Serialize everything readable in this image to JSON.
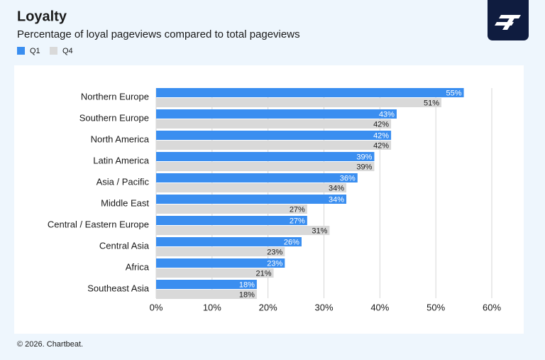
{
  "chart_data": {
    "type": "bar",
    "orientation": "horizontal",
    "title": "Loyalty",
    "subtitle": "Percentage of loyal pageviews compared to total pageviews",
    "categories": [
      "Northern Europe",
      "Southern Europe",
      "North America",
      "Latin America",
      "Asia / Pacific",
      "Middle East",
      "Central / Eastern Europe",
      "Central Asia",
      "Africa",
      "Southeast Asia"
    ],
    "series": [
      {
        "name": "Q1",
        "color": "#3a8ef0",
        "values": [
          55,
          43,
          42,
          39,
          36,
          34,
          27,
          26,
          23,
          18
        ],
        "value_labels": [
          "55%",
          "43%",
          "42%",
          "39%",
          "36%",
          "34%",
          "27%",
          "26%",
          "23%",
          "18%"
        ]
      },
      {
        "name": "Q4",
        "color": "#d9d9d9",
        "values": [
          51,
          42,
          42,
          39,
          34,
          27,
          31,
          23,
          21,
          18
        ],
        "value_labels": [
          "51%",
          "42%",
          "42%",
          "39%",
          "34%",
          "27%",
          "31%",
          "23%",
          "21%",
          "18%"
        ]
      }
    ],
    "xlim": [
      0,
      60
    ],
    "xticks": [
      {
        "value": 0,
        "label": "0%"
      },
      {
        "value": 10,
        "label": "10%"
      },
      {
        "value": 20,
        "label": "20%"
      },
      {
        "value": 30,
        "label": "30%"
      },
      {
        "value": 40,
        "label": "40%"
      },
      {
        "value": 50,
        "label": "50%"
      },
      {
        "value": 60,
        "label": "60%"
      }
    ],
    "grid": true,
    "legend": "top-left",
    "source": "© 2026. Chartbeat."
  }
}
